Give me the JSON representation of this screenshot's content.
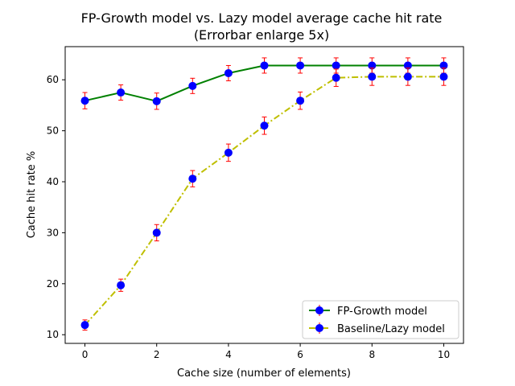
{
  "chart_data": {
    "type": "line",
    "title": "FP-Growth model vs. Lazy model average cache hit rate",
    "subtitle": "(Errorbar enlarge 5x)",
    "xlabel": "Cache size (number of elements)",
    "ylabel": "Cache hit rate %",
    "xlim": [
      -0.55,
      10.55
    ],
    "ylim": [
      8.3,
      66.5
    ],
    "xticks": [
      0,
      2,
      4,
      6,
      8,
      10
    ],
    "yticks": [
      10,
      20,
      30,
      40,
      50,
      60
    ],
    "x": [
      0,
      1,
      2,
      3,
      4,
      5,
      6,
      7,
      8,
      9,
      10
    ],
    "grid": false,
    "legend_position": "lower-right",
    "series": [
      {
        "name": "FP-Growth model",
        "color": "#008000",
        "linestyle": "solid",
        "marker_color": "#0000ff",
        "errorbar_color": "#ff0000",
        "values": [
          55.9,
          57.5,
          55.8,
          58.8,
          61.3,
          62.8,
          62.8,
          62.8,
          62.8,
          62.8,
          62.8
        ],
        "errors": [
          1.6,
          1.5,
          1.6,
          1.5,
          1.5,
          1.5,
          1.5,
          1.5,
          1.5,
          1.5,
          1.5
        ]
      },
      {
        "name": "Baseline/Lazy model",
        "color": "#bfbf00",
        "linestyle": "dashdot",
        "marker_color": "#0000ff",
        "errorbar_color": "#ff0000",
        "values": [
          11.9,
          19.7,
          30.0,
          40.6,
          45.7,
          51.0,
          55.9,
          60.4,
          60.6,
          60.6,
          60.6
        ],
        "errors": [
          1.0,
          1.2,
          1.6,
          1.6,
          1.7,
          1.7,
          1.7,
          1.7,
          1.7,
          1.7,
          1.7
        ]
      }
    ]
  }
}
